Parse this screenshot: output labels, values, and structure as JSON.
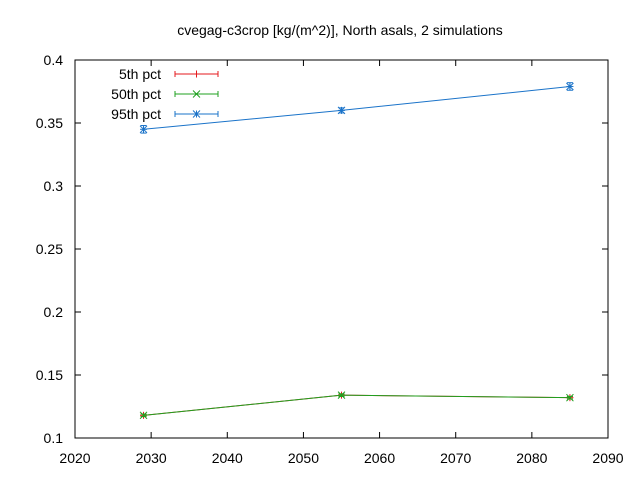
{
  "chart_data": {
    "type": "line",
    "title": "cvegag-c3crop [kg/(m^2)], North asals, 2 simulations",
    "xlabel": "",
    "ylabel": "",
    "xlim": [
      2020,
      2090
    ],
    "ylim": [
      0.1,
      0.4
    ],
    "x_ticks": [
      2020,
      2030,
      2040,
      2050,
      2060,
      2070,
      2080,
      2090
    ],
    "y_ticks": [
      0.1,
      0.15,
      0.2,
      0.25,
      0.3,
      0.35,
      0.4
    ],
    "x_tick_labels": [
      "2020",
      "2030",
      "2040",
      "2050",
      "2060",
      "2070",
      "2080",
      "2090"
    ],
    "y_tick_labels": [
      "0.1",
      "0.15",
      "0.2",
      "0.25",
      "0.3",
      "0.35",
      "0.4"
    ],
    "grid": false,
    "legend_position": "top-left",
    "x": [
      2029,
      2055,
      2085
    ],
    "series": [
      {
        "name": "5th pct",
        "color": "#e41a1c",
        "marker": "plus",
        "values": [
          0.118,
          0.134,
          0.132
        ],
        "error": [
          0.001,
          0.001,
          0.001
        ]
      },
      {
        "name": "50th pct",
        "color": "#1fa01f",
        "marker": "x",
        "values": [
          0.118,
          0.134,
          0.132
        ],
        "error": [
          0.001,
          0.001,
          0.001
        ]
      },
      {
        "name": "95th pct",
        "color": "#1a73c9",
        "marker": "star",
        "values": [
          0.345,
          0.36,
          0.379
        ],
        "error": [
          0.003,
          0.002,
          0.003
        ]
      }
    ]
  }
}
